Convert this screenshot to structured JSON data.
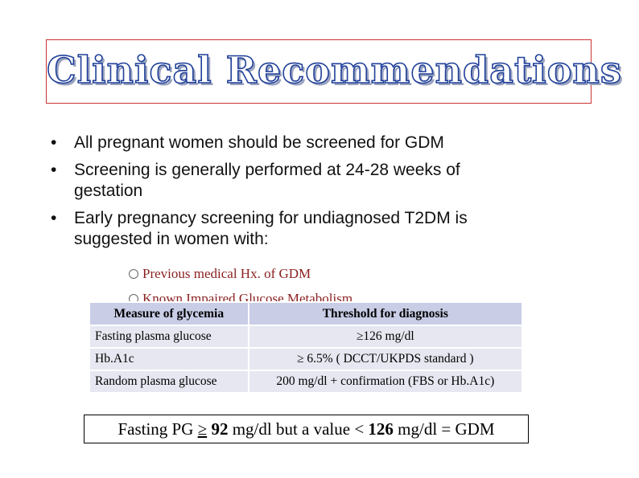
{
  "title": "Clinical Recommendations",
  "bullets": [
    {
      "line1": "All pregnant women should be screened for GDM"
    },
    {
      "line1": "Screening is generally performed at 24-28 weeks of",
      "line2": "gestation"
    },
    {
      "line1": "Early pregnancy screening for undiagnosed T2DM is",
      "line2": "suggested in women with:"
    }
  ],
  "sub_items": [
    "Previous medical Hx. of GDM",
    "Known Impaired Glucose Metabolism"
  ],
  "table": {
    "headers": [
      "Measure of glycemia",
      "Threshold for diagnosis"
    ],
    "rows": [
      [
        "Fasting  plasma  glucose",
        "≥126 mg/dl"
      ],
      [
        "Hb.A1c",
        "≥ 6.5% ( DCCT/UKPDS standard )"
      ],
      [
        "Random  plasma  glucose",
        "200 mg/dl + confirmation (FBS or Hb.A1c)"
      ]
    ]
  },
  "note": {
    "part1": "Fasting PG ",
    "ge": "≥",
    "v1": "92",
    "part2": " mg/dl but a value ",
    "lt": "<",
    "v2": "126",
    "part3": " mg/dl = GDM"
  }
}
